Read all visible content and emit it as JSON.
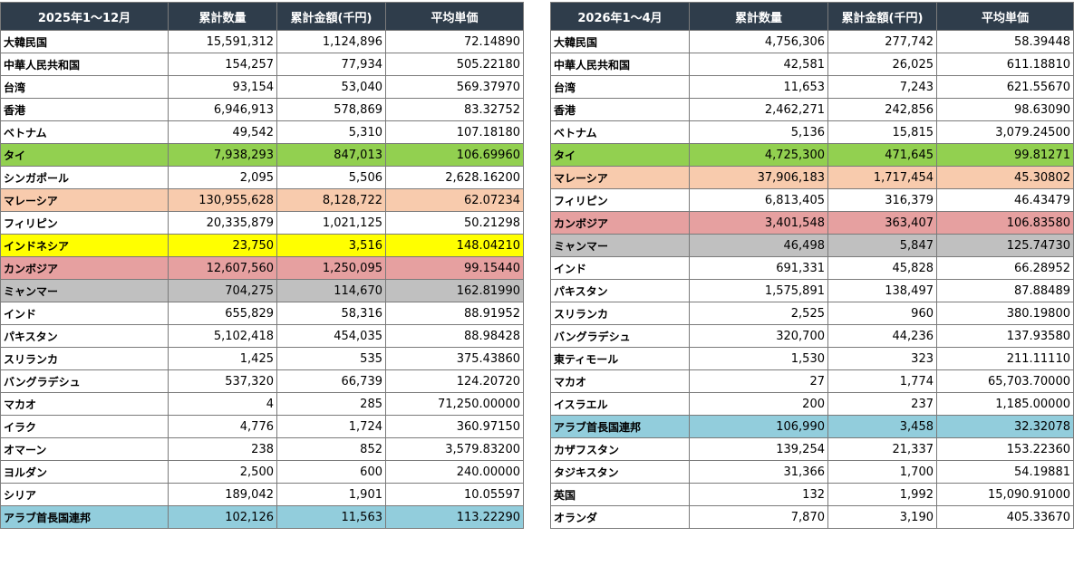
{
  "colors": {
    "header_bg": "#2f3d4b",
    "green": "#92d050",
    "orange": "#f8cbad",
    "yellow": "#ffff00",
    "red": "#e6a0a0",
    "gray": "#c0c0c0",
    "blue": "#92cddc"
  },
  "left": {
    "headers": [
      "2025年1～12月",
      "累計数量",
      "累計金額(千円)",
      "平均単価"
    ],
    "rows": [
      {
        "name": "大韓民国",
        "qty": "15,591,312",
        "amount": "1,124,896",
        "price": "72.14890",
        "hl": ""
      },
      {
        "name": "中華人民共和国",
        "qty": "154,257",
        "amount": "77,934",
        "price": "505.22180",
        "hl": ""
      },
      {
        "name": "台湾",
        "qty": "93,154",
        "amount": "53,040",
        "price": "569.37970",
        "hl": ""
      },
      {
        "name": "香港",
        "qty": "6,946,913",
        "amount": "578,869",
        "price": "83.32752",
        "hl": ""
      },
      {
        "name": "ベトナム",
        "qty": "49,542",
        "amount": "5,310",
        "price": "107.18180",
        "hl": ""
      },
      {
        "name": "タイ",
        "qty": "7,938,293",
        "amount": "847,013",
        "price": "106.69960",
        "hl": "green"
      },
      {
        "name": "シンガポール",
        "qty": "2,095",
        "amount": "5,506",
        "price": "2,628.16200",
        "hl": ""
      },
      {
        "name": "マレーシア",
        "qty": "130,955,628",
        "amount": "8,128,722",
        "price": "62.07234",
        "hl": "orange"
      },
      {
        "name": "フィリピン",
        "qty": "20,335,879",
        "amount": "1,021,125",
        "price": "50.21298",
        "hl": ""
      },
      {
        "name": "インドネシア",
        "qty": "23,750",
        "amount": "3,516",
        "price": "148.04210",
        "hl": "yellow"
      },
      {
        "name": "カンボジア",
        "qty": "12,607,560",
        "amount": "1,250,095",
        "price": "99.15440",
        "hl": "red"
      },
      {
        "name": "ミャンマー",
        "qty": "704,275",
        "amount": "114,670",
        "price": "162.81990",
        "hl": "gray"
      },
      {
        "name": "インド",
        "qty": "655,829",
        "amount": "58,316",
        "price": "88.91952",
        "hl": ""
      },
      {
        "name": "パキスタン",
        "qty": "5,102,418",
        "amount": "454,035",
        "price": "88.98428",
        "hl": ""
      },
      {
        "name": "スリランカ",
        "qty": "1,425",
        "amount": "535",
        "price": "375.43860",
        "hl": ""
      },
      {
        "name": "バングラデシュ",
        "qty": "537,320",
        "amount": "66,739",
        "price": "124.20720",
        "hl": ""
      },
      {
        "name": "マカオ",
        "qty": "4",
        "amount": "285",
        "price": "71,250.00000",
        "hl": ""
      },
      {
        "name": "イラク",
        "qty": "4,776",
        "amount": "1,724",
        "price": "360.97150",
        "hl": ""
      },
      {
        "name": "オマーン",
        "qty": "238",
        "amount": "852",
        "price": "3,579.83200",
        "hl": ""
      },
      {
        "name": "ヨルダン",
        "qty": "2,500",
        "amount": "600",
        "price": "240.00000",
        "hl": ""
      },
      {
        "name": "シリア",
        "qty": "189,042",
        "amount": "1,901",
        "price": "10.05597",
        "hl": ""
      },
      {
        "name": "アラブ首長国連邦",
        "qty": "102,126",
        "amount": "11,563",
        "price": "113.22290",
        "hl": "blue"
      }
    ]
  },
  "right": {
    "headers": [
      "2026年1～4月",
      "累計数量",
      "累計金額(千円)",
      "平均単価"
    ],
    "rows": [
      {
        "name": "大韓民国",
        "qty": "4,756,306",
        "amount": "277,742",
        "price": "58.39448",
        "hl": ""
      },
      {
        "name": "中華人民共和国",
        "qty": "42,581",
        "amount": "26,025",
        "price": "611.18810",
        "hl": ""
      },
      {
        "name": "台湾",
        "qty": "11,653",
        "amount": "7,243",
        "price": "621.55670",
        "hl": ""
      },
      {
        "name": "香港",
        "qty": "2,462,271",
        "amount": "242,856",
        "price": "98.63090",
        "hl": ""
      },
      {
        "name": "ベトナム",
        "qty": "5,136",
        "amount": "15,815",
        "price": "3,079.24500",
        "hl": ""
      },
      {
        "name": "タイ",
        "qty": "4,725,300",
        "amount": "471,645",
        "price": "99.81271",
        "hl": "green"
      },
      {
        "name": "マレーシア",
        "qty": "37,906,183",
        "amount": "1,717,454",
        "price": "45.30802",
        "hl": "orange"
      },
      {
        "name": "フィリピン",
        "qty": "6,813,405",
        "amount": "316,379",
        "price": "46.43479",
        "hl": ""
      },
      {
        "name": "カンボジア",
        "qty": "3,401,548",
        "amount": "363,407",
        "price": "106.83580",
        "hl": "red"
      },
      {
        "name": "ミャンマー",
        "qty": "46,498",
        "amount": "5,847",
        "price": "125.74730",
        "hl": "gray"
      },
      {
        "name": "インド",
        "qty": "691,331",
        "amount": "45,828",
        "price": "66.28952",
        "hl": ""
      },
      {
        "name": "パキスタン",
        "qty": "1,575,891",
        "amount": "138,497",
        "price": "87.88489",
        "hl": ""
      },
      {
        "name": "スリランカ",
        "qty": "2,525",
        "amount": "960",
        "price": "380.19800",
        "hl": ""
      },
      {
        "name": "バングラデシュ",
        "qty": "320,700",
        "amount": "44,236",
        "price": "137.93580",
        "hl": ""
      },
      {
        "name": "東ティモール",
        "qty": "1,530",
        "amount": "323",
        "price": "211.11110",
        "hl": ""
      },
      {
        "name": "マカオ",
        "qty": "27",
        "amount": "1,774",
        "price": "65,703.70000",
        "hl": ""
      },
      {
        "name": "イスラエル",
        "qty": "200",
        "amount": "237",
        "price": "1,185.00000",
        "hl": ""
      },
      {
        "name": "アラブ首長国連邦",
        "qty": "106,990",
        "amount": "3,458",
        "price": "32.32078",
        "hl": "blue"
      },
      {
        "name": "カザフスタン",
        "qty": "139,254",
        "amount": "21,337",
        "price": "153.22360",
        "hl": ""
      },
      {
        "name": "タジキスタン",
        "qty": "31,366",
        "amount": "1,700",
        "price": "54.19881",
        "hl": ""
      },
      {
        "name": "英国",
        "qty": "132",
        "amount": "1,992",
        "price": "15,090.91000",
        "hl": ""
      },
      {
        "name": "オランダ",
        "qty": "7,870",
        "amount": "3,190",
        "price": "405.33670",
        "hl": ""
      }
    ]
  }
}
